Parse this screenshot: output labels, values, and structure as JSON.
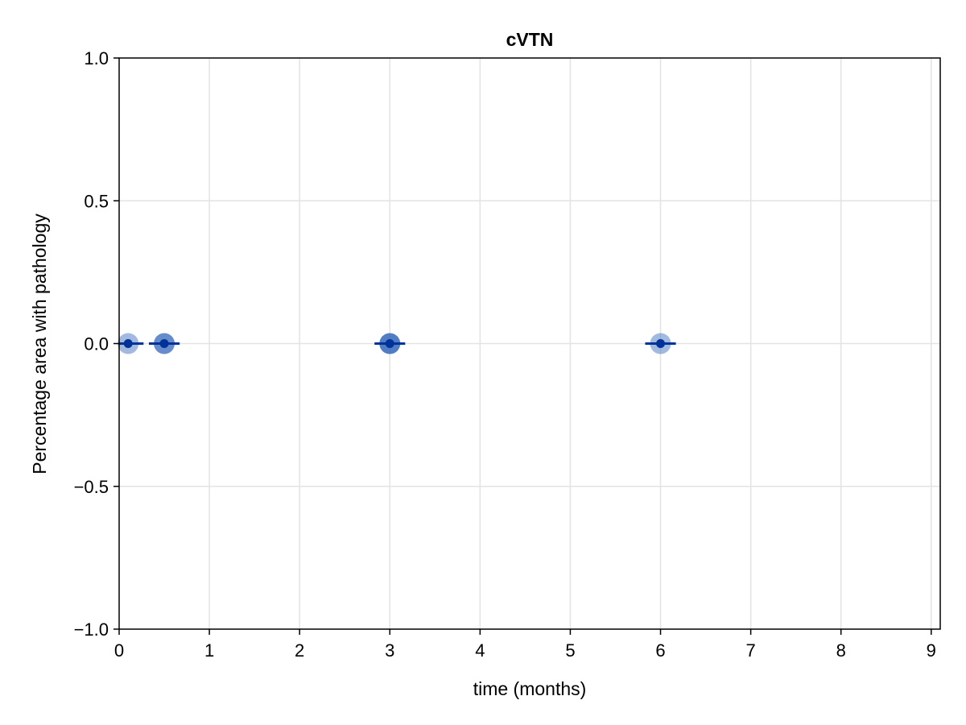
{
  "chart_data": {
    "type": "scatter",
    "title": "cVTN",
    "xlabel": "time (months)",
    "ylabel": "Percentage area with pathology",
    "xlim": [
      0,
      9.1
    ],
    "ylim": [
      -1.0,
      1.0
    ],
    "xticks": [
      0,
      1,
      2,
      3,
      4,
      5,
      6,
      7,
      8,
      9
    ],
    "xtick_labels": [
      "0",
      "1",
      "2",
      "3",
      "4",
      "5",
      "6",
      "7",
      "8",
      "9"
    ],
    "yticks": [
      -1.0,
      -0.5,
      0.0,
      0.5,
      1.0
    ],
    "ytick_labels": [
      "−1.0",
      "−0.5",
      "0.0",
      "0.5",
      "1.0"
    ],
    "grid": true,
    "marker_color": "#003399",
    "halo_color": "#3366bb",
    "points": [
      {
        "x": 0.1,
        "y": 0.0,
        "halo_opacity": 0.45,
        "band": [
          0.0,
          0.27
        ]
      },
      {
        "x": 0.5,
        "y": 0.0,
        "halo_opacity": 0.75,
        "band": [
          0.33,
          0.67
        ]
      },
      {
        "x": 3.0,
        "y": 0.0,
        "halo_opacity": 0.85,
        "band": [
          2.83,
          3.17
        ]
      },
      {
        "x": 6.0,
        "y": 0.0,
        "halo_opacity": 0.45,
        "band": [
          5.83,
          6.17
        ]
      }
    ]
  }
}
